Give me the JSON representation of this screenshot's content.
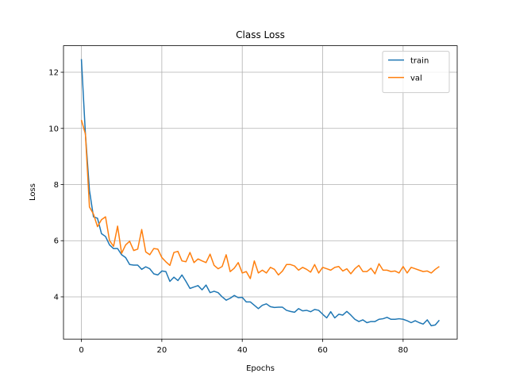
{
  "chart_data": {
    "type": "line",
    "title": "Class Loss",
    "xlabel": "Epochs",
    "ylabel": "Loss",
    "x": [
      0,
      1,
      2,
      3,
      4,
      5,
      6,
      7,
      8,
      9,
      10,
      11,
      12,
      13,
      14,
      15,
      16,
      17,
      18,
      19,
      20,
      21,
      22,
      23,
      24,
      25,
      26,
      27,
      28,
      29,
      30,
      31,
      32,
      33,
      34,
      35,
      36,
      37,
      38,
      39,
      40,
      41,
      42,
      43,
      44,
      45,
      46,
      47,
      48,
      49,
      50,
      51,
      52,
      53,
      54,
      55,
      56,
      57,
      58,
      59,
      60,
      61,
      62,
      63,
      64,
      65,
      66,
      67,
      68,
      69,
      70,
      71,
      72,
      73,
      74,
      75,
      76,
      77,
      78,
      79,
      80,
      81,
      82,
      83,
      84,
      85,
      86,
      87,
      88,
      89
    ],
    "series": [
      {
        "name": "train",
        "color": "#1f77b4",
        "values": [
          12.47,
          9.8,
          7.8,
          6.85,
          6.8,
          6.25,
          6.15,
          5.85,
          5.72,
          5.72,
          5.5,
          5.4,
          5.15,
          5.13,
          5.13,
          4.98,
          5.07,
          5.0,
          4.82,
          4.78,
          4.92,
          4.9,
          4.55,
          4.7,
          4.58,
          4.78,
          4.55,
          4.3,
          4.35,
          4.4,
          4.25,
          4.42,
          4.15,
          4.2,
          4.15,
          4.0,
          3.88,
          3.95,
          4.05,
          3.97,
          3.98,
          3.82,
          3.82,
          3.7,
          3.58,
          3.7,
          3.75,
          3.65,
          3.62,
          3.63,
          3.63,
          3.52,
          3.48,
          3.45,
          3.58,
          3.5,
          3.52,
          3.47,
          3.55,
          3.52,
          3.38,
          3.25,
          3.47,
          3.25,
          3.38,
          3.35,
          3.48,
          3.35,
          3.2,
          3.12,
          3.18,
          3.08,
          3.12,
          3.12,
          3.2,
          3.22,
          3.27,
          3.2,
          3.2,
          3.22,
          3.2,
          3.15,
          3.08,
          3.15,
          3.08,
          3.03,
          3.18,
          2.97,
          3.0,
          3.17
        ]
      },
      {
        "name": "val",
        "color": "#ff7f0e",
        "values": [
          10.3,
          9.8,
          7.2,
          6.95,
          6.5,
          6.75,
          6.85,
          6.0,
          5.8,
          6.52,
          5.55,
          5.85,
          5.98,
          5.65,
          5.7,
          6.4,
          5.6,
          5.5,
          5.72,
          5.7,
          5.4,
          5.25,
          5.12,
          5.58,
          5.62,
          5.28,
          5.25,
          5.58,
          5.22,
          5.35,
          5.28,
          5.22,
          5.52,
          5.12,
          5.0,
          5.08,
          5.5,
          4.9,
          5.02,
          5.22,
          4.85,
          4.9,
          4.65,
          5.28,
          4.85,
          4.95,
          4.85,
          5.05,
          4.98,
          4.78,
          4.92,
          5.15,
          5.15,
          5.1,
          4.95,
          5.05,
          4.98,
          4.88,
          5.15,
          4.85,
          5.05,
          5.0,
          4.95,
          5.05,
          5.08,
          4.92,
          5.0,
          4.82,
          5.0,
          5.12,
          4.9,
          4.9,
          5.02,
          4.82,
          5.18,
          4.95,
          4.95,
          4.9,
          4.92,
          4.85,
          5.08,
          4.85,
          5.05,
          5.0,
          4.95,
          4.9,
          4.92,
          4.85,
          4.98,
          5.08
        ]
      }
    ],
    "xlim": [
      -4.45,
      93.45
    ],
    "ylim": [
      2.495,
      12.945
    ],
    "xticks": [
      0,
      20,
      40,
      60,
      80
    ],
    "yticks": [
      4,
      6,
      8,
      10,
      12
    ],
    "grid": true,
    "legend": "upper right"
  }
}
